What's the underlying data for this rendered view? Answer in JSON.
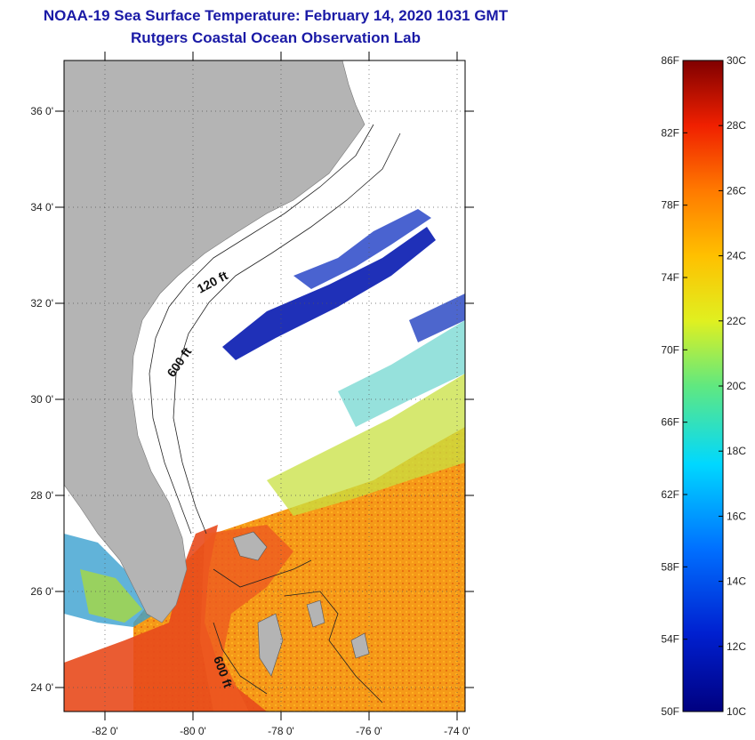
{
  "title": "NOAA-19 Sea Surface Temperature:  February 14, 2020 1031 GMT",
  "subtitle": "Rutgers Coastal Ocean Observation Lab",
  "map": {
    "lat_labels": [
      "36 0'",
      "34 0'",
      "32 0'",
      "30 0'",
      "28 0'",
      "26 0'",
      "24 0'"
    ],
    "lon_labels": [
      "-82 0'",
      "-80 0'",
      "-78 0'",
      "-76 0'",
      "-74 0'"
    ],
    "contour_labels": [
      "120 ft",
      "600 ft",
      "600 ft"
    ],
    "colors": {
      "land": "#b4b4b4",
      "cloud": "#ffffff",
      "cold": "#1f2fb0",
      "warm": "#f08a10",
      "hot": "#e8401a"
    }
  },
  "colorbar": {
    "fahrenheit_labels": [
      "86F",
      "82F",
      "78F",
      "74F",
      "70F",
      "66F",
      "62F",
      "58F",
      "54F",
      "50F"
    ],
    "celsius_labels": [
      "30C",
      "28C",
      "26C",
      "24C",
      "22C",
      "20C",
      "18C",
      "16C",
      "14C",
      "12C",
      "10C"
    ],
    "range_celsius": [
      10,
      30
    ],
    "range_fahrenheit": [
      50,
      86
    ]
  }
}
